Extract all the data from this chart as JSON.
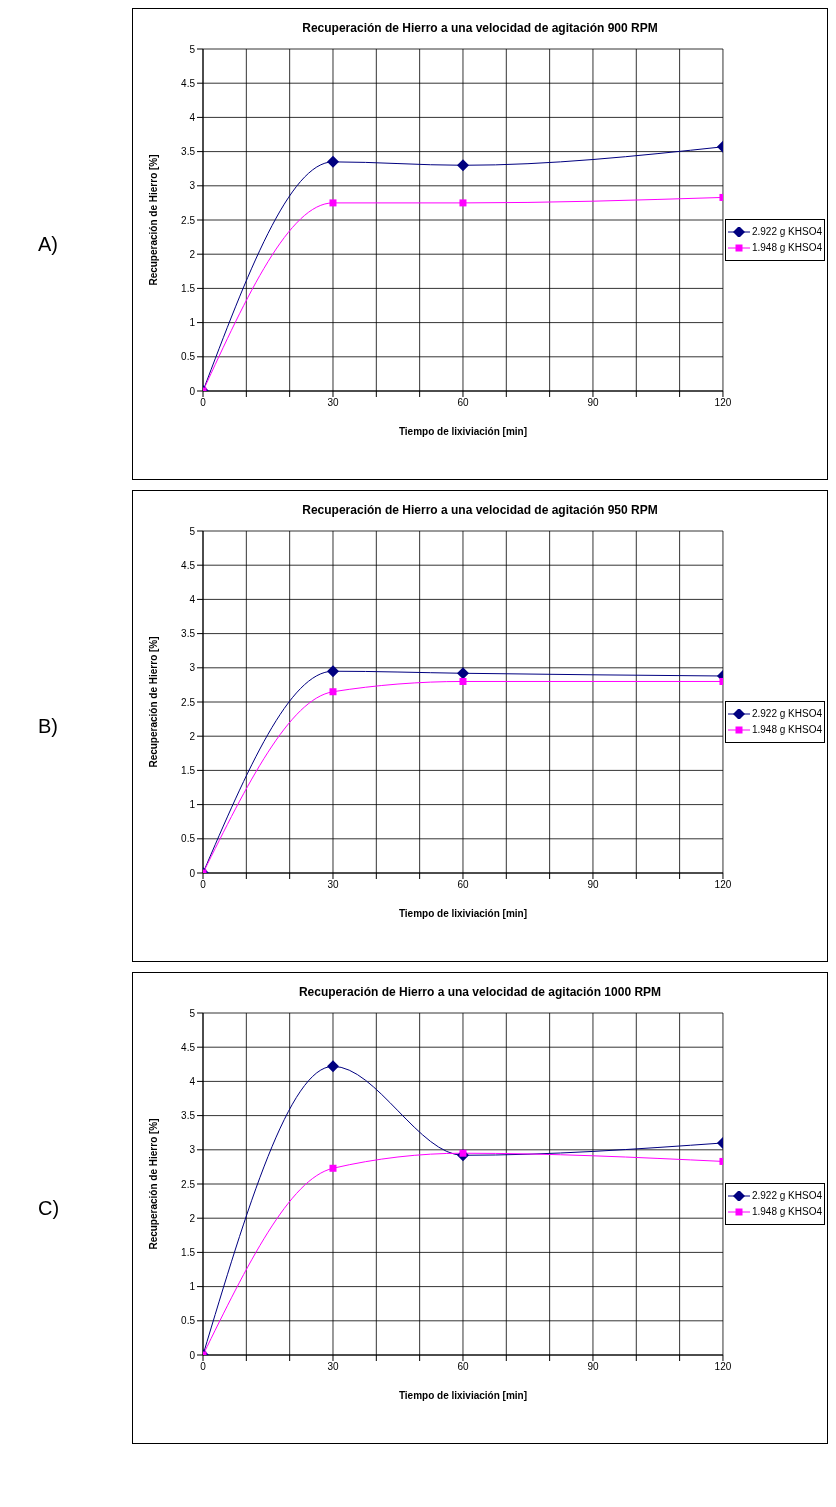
{
  "chart_data": [
    {
      "type": "line",
      "title": "Recuperación de Hierro a una velocidad de agitación 900 RPM",
      "xlabel": "Tiempo de lixiviación [min]",
      "ylabel": "Recuperación de Hierro [%]",
      "annotations": [
        "A)"
      ],
      "x": [
        0,
        30,
        60,
        120
      ],
      "series": [
        {
          "name": "2.922 g KHSO4",
          "color": "#000080",
          "marker": "diamond",
          "values": [
            0,
            3.35,
            3.3,
            3.57
          ]
        },
        {
          "name": "1.948 g KHSO4",
          "color": "#ff00ff",
          "marker": "square",
          "values": [
            0,
            2.75,
            2.75,
            2.83
          ]
        }
      ],
      "xlim": [
        0,
        120
      ],
      "xticks": [
        0,
        {
          "value": 10,
          "label": null
        },
        {
          "value": 20,
          "label": null
        },
        30,
        {
          "value": 40,
          "label": null
        },
        {
          "value": 50,
          "label": null
        },
        60,
        {
          "value": 70,
          "label": null
        },
        {
          "value": 80,
          "label": null
        },
        90,
        {
          "value": 100,
          "label": null
        },
        {
          "value": 110,
          "label": null
        },
        120
      ],
      "ylim": [
        0,
        5
      ],
      "yticks": [
        0,
        0.5,
        1,
        1.5,
        2,
        2.5,
        3,
        3.5,
        4,
        4.5,
        5
      ],
      "grid": true,
      "legend": "right"
    },
    {
      "type": "line",
      "title": "Recuperación de Hierro a una velocidad de agitación 950 RPM",
      "xlabel": "Tiempo de lixiviación [min]",
      "ylabel": "Recuperación de Hierro [%]",
      "annotations": [
        "B)"
      ],
      "x": [
        0,
        30,
        60,
        120
      ],
      "series": [
        {
          "name": "2.922 g KHSO4",
          "color": "#000080",
          "marker": "diamond",
          "values": [
            0,
            2.95,
            2.92,
            2.88
          ]
        },
        {
          "name": "1.948 g KHSO4",
          "color": "#ff00ff",
          "marker": "square",
          "values": [
            0,
            2.65,
            2.8,
            2.8
          ]
        }
      ],
      "xlim": [
        0,
        120
      ],
      "xticks": [
        0,
        {
          "value": 10,
          "label": null
        },
        {
          "value": 20,
          "label": null
        },
        30,
        {
          "value": 40,
          "label": null
        },
        {
          "value": 50,
          "label": null
        },
        60,
        {
          "value": 70,
          "label": null
        },
        {
          "value": 80,
          "label": null
        },
        90,
        {
          "value": 100,
          "label": null
        },
        {
          "value": 110,
          "label": null
        },
        120
      ],
      "ylim": [
        0,
        5
      ],
      "yticks": [
        0,
        0.5,
        1,
        1.5,
        2,
        2.5,
        3,
        3.5,
        4,
        4.5,
        5
      ],
      "grid": true,
      "legend": "right"
    },
    {
      "type": "line",
      "title": "Recuperación de Hierro a una velocidad de agitación 1000 RPM",
      "xlabel": "Tiempo de lixiviación [min]",
      "ylabel": "Recuperación de Hierro [%]",
      "annotations": [
        "C)"
      ],
      "x": [
        0,
        30,
        60,
        120
      ],
      "series": [
        {
          "name": "2.922 g KHSO4",
          "color": "#000080",
          "marker": "diamond",
          "values": [
            0,
            4.22,
            2.92,
            3.1
          ]
        },
        {
          "name": "1.948 g KHSO4",
          "color": "#ff00ff",
          "marker": "square",
          "values": [
            0,
            2.73,
            2.95,
            2.83
          ]
        }
      ],
      "xlim": [
        0,
        120
      ],
      "xticks": [
        0,
        {
          "value": 10,
          "label": null
        },
        {
          "value": 20,
          "label": null
        },
        30,
        {
          "value": 40,
          "label": null
        },
        {
          "value": 50,
          "label": null
        },
        60,
        {
          "value": 70,
          "label": null
        },
        {
          "value": 80,
          "label": null
        },
        90,
        {
          "value": 100,
          "label": null
        },
        {
          "value": 110,
          "label": null
        },
        120
      ],
      "ylim": [
        0,
        5
      ],
      "yticks": [
        0,
        0.5,
        1,
        1.5,
        2,
        2.5,
        3,
        3.5,
        4,
        4.5,
        5
      ],
      "grid": true,
      "legend": "right"
    }
  ]
}
